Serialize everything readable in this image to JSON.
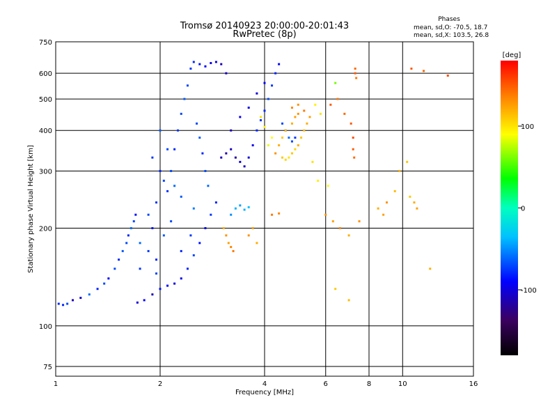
{
  "chart_data": {
    "type": "scatter",
    "title": "Tromsø 20140923 20:00:00-20:01:43",
    "subtitle": "RwPretec (8p)",
    "xlabel": "Frequency [MHz]",
    "ylabel": "Stationary phase Virtual Height [km]",
    "x_scale": "log",
    "y_scale": "log",
    "xlim": [
      1,
      16
    ],
    "ylim": [
      70,
      750
    ],
    "x_ticks": [
      1,
      2,
      4,
      6,
      8,
      10,
      16
    ],
    "y_ticks": [
      75,
      100,
      200,
      300,
      400,
      500,
      600,
      750
    ],
    "grid": true,
    "legend": {
      "title": "Phases",
      "lines": [
        "mean, sd,O: -70.5, 18.7",
        "mean, sd,X: 103.5, 26.8"
      ],
      "position": "top-right"
    },
    "colorbar": {
      "label": "[deg]",
      "range": [
        -180,
        180
      ],
      "ticks": [
        100,
        0,
        -100
      ],
      "colormap": "rainbow"
    },
    "series": [
      {
        "points": [
          [
            1.02,
            117,
            -80
          ],
          [
            1.05,
            116,
            -80
          ],
          [
            1.08,
            117,
            -70
          ],
          [
            1.12,
            120,
            -110
          ],
          [
            1.18,
            122,
            -100
          ],
          [
            1.25,
            125,
            -60
          ],
          [
            1.32,
            130,
            -80
          ],
          [
            1.38,
            135,
            -70
          ],
          [
            1.42,
            140,
            -90
          ],
          [
            1.48,
            150,
            -70
          ],
          [
            1.52,
            160,
            -80
          ],
          [
            1.56,
            170,
            -65
          ],
          [
            1.6,
            180,
            -70
          ],
          [
            1.62,
            190,
            -80
          ],
          [
            1.65,
            200,
            -60
          ],
          [
            1.68,
            210,
            -70
          ],
          [
            1.7,
            220,
            -85
          ],
          [
            1.72,
            118,
            -100
          ],
          [
            1.8,
            120,
            -90
          ],
          [
            1.9,
            125,
            -110
          ],
          [
            2.0,
            130,
            -85
          ],
          [
            2.1,
            133,
            -90
          ],
          [
            2.2,
            135,
            -100
          ],
          [
            2.3,
            140,
            -95
          ],
          [
            2.4,
            150,
            -80
          ],
          [
            2.5,
            165,
            -70
          ],
          [
            2.6,
            180,
            -85
          ],
          [
            2.7,
            200,
            -90
          ],
          [
            2.8,
            220,
            -75
          ],
          [
            2.9,
            240,
            -80
          ],
          [
            1.75,
            180,
            -60
          ],
          [
            1.85,
            170,
            -75
          ],
          [
            1.95,
            160,
            -80
          ],
          [
            2.05,
            190,
            -65
          ],
          [
            2.15,
            210,
            -70
          ],
          [
            2.1,
            260,
            -75
          ],
          [
            2.15,
            300,
            -70
          ],
          [
            2.2,
            350,
            -80
          ],
          [
            2.25,
            400,
            -75
          ],
          [
            2.3,
            450,
            -70
          ],
          [
            2.35,
            500,
            -65
          ],
          [
            2.4,
            550,
            -70
          ],
          [
            2.45,
            620,
            -75
          ],
          [
            2.5,
            650,
            -80
          ],
          [
            2.6,
            640,
            -85
          ],
          [
            2.7,
            630,
            -90
          ],
          [
            2.8,
            645,
            -100
          ],
          [
            2.9,
            650,
            -95
          ],
          [
            3.0,
            640,
            -110
          ],
          [
            3.1,
            600,
            -105
          ],
          [
            2.55,
            420,
            -70
          ],
          [
            2.6,
            380,
            -65
          ],
          [
            2.65,
            340,
            -80
          ],
          [
            2.7,
            300,
            -70
          ],
          [
            2.75,
            270,
            -60
          ],
          [
            2.5,
            230,
            -55
          ],
          [
            2.3,
            250,
            -65
          ],
          [
            2.2,
            270,
            -60
          ],
          [
            2.05,
            280,
            -70
          ],
          [
            1.95,
            240,
            -75
          ],
          [
            3.0,
            330,
            -110
          ],
          [
            3.1,
            340,
            -115
          ],
          [
            3.2,
            350,
            -110
          ],
          [
            3.3,
            330,
            -120
          ],
          [
            3.4,
            320,
            -105
          ],
          [
            3.5,
            310,
            -110
          ],
          [
            3.6,
            330,
            -100
          ],
          [
            3.7,
            360,
            -95
          ],
          [
            3.8,
            400,
            -80
          ],
          [
            3.9,
            430,
            -75
          ],
          [
            4.0,
            460,
            -80
          ],
          [
            4.1,
            500,
            -70
          ],
          [
            4.2,
            550,
            -75
          ],
          [
            4.3,
            600,
            -80
          ],
          [
            4.4,
            640,
            -90
          ],
          [
            3.2,
            400,
            -110
          ],
          [
            3.4,
            440,
            -100
          ],
          [
            3.6,
            470,
            -95
          ],
          [
            3.8,
            520,
            -100
          ],
          [
            4.0,
            560,
            -90
          ],
          [
            4.5,
            420,
            -70
          ],
          [
            4.6,
            400,
            -65
          ],
          [
            4.7,
            380,
            -60
          ],
          [
            4.8,
            370,
            -70
          ],
          [
            4.9,
            380,
            -75
          ],
          [
            3.3,
            230,
            -40
          ],
          [
            3.4,
            235,
            -45
          ],
          [
            3.5,
            228,
            -40
          ],
          [
            3.6,
            232,
            -35
          ],
          [
            3.2,
            220,
            -50
          ],
          [
            2.0,
            300,
            -80
          ],
          [
            1.9,
            330,
            -75
          ],
          [
            1.85,
            220,
            -70
          ],
          [
            1.9,
            200,
            -85
          ],
          [
            1.75,
            150,
            -75
          ],
          [
            2.0,
            400,
            -65
          ],
          [
            2.1,
            350,
            -70
          ],
          [
            1.95,
            145,
            -70
          ],
          [
            2.3,
            170,
            -80
          ],
          [
            2.45,
            190,
            -75
          ]
        ]
      },
      {
        "points": [
          [
            4.5,
            330,
            110
          ],
          [
            4.6,
            325,
            105
          ],
          [
            4.7,
            330,
            100
          ],
          [
            4.8,
            340,
            110
          ],
          [
            4.9,
            350,
            105
          ],
          [
            5.0,
            360,
            120
          ],
          [
            5.1,
            380,
            110
          ],
          [
            5.2,
            400,
            115
          ],
          [
            5.3,
            420,
            120
          ],
          [
            5.4,
            440,
            125
          ],
          [
            5.0,
            450,
            130
          ],
          [
            4.9,
            440,
            125
          ],
          [
            4.8,
            420,
            120
          ],
          [
            4.6,
            400,
            115
          ],
          [
            4.5,
            380,
            110
          ],
          [
            4.4,
            360,
            120
          ],
          [
            4.3,
            340,
            130
          ],
          [
            4.8,
            470,
            135
          ],
          [
            5.0,
            480,
            130
          ],
          [
            5.2,
            460,
            140
          ],
          [
            3.1,
            190,
            130
          ],
          [
            3.15,
            180,
            125
          ],
          [
            3.2,
            175,
            135
          ],
          [
            3.05,
            200,
            120
          ],
          [
            3.25,
            170,
            140
          ],
          [
            3.6,
            190,
            130
          ],
          [
            3.7,
            200,
            125
          ],
          [
            3.8,
            180,
            120
          ],
          [
            4.2,
            220,
            140
          ],
          [
            4.4,
            222,
            135
          ],
          [
            6.2,
            480,
            150
          ],
          [
            6.5,
            500,
            140
          ],
          [
            6.8,
            450,
            145
          ],
          [
            7.1,
            420,
            150
          ],
          [
            7.2,
            380,
            155
          ],
          [
            7.2,
            350,
            150
          ],
          [
            7.25,
            330,
            145
          ],
          [
            7.3,
            600,
            150
          ],
          [
            7.3,
            620,
            145
          ],
          [
            7.35,
            580,
            140
          ],
          [
            6.0,
            220,
            130
          ],
          [
            6.3,
            210,
            125
          ],
          [
            6.6,
            200,
            135
          ],
          [
            7.0,
            190,
            120
          ],
          [
            7.5,
            210,
            130
          ],
          [
            8.5,
            230,
            120
          ],
          [
            8.8,
            220,
            125
          ],
          [
            9.0,
            240,
            130
          ],
          [
            9.5,
            260,
            115
          ],
          [
            10.5,
            250,
            110
          ],
          [
            10.8,
            240,
            120
          ],
          [
            11.0,
            230,
            125
          ],
          [
            10.6,
            620,
            150
          ],
          [
            11.5,
            610,
            145
          ],
          [
            13.5,
            590,
            155
          ],
          [
            9.8,
            300,
            120
          ],
          [
            10.3,
            320,
            110
          ],
          [
            6.4,
            560,
            60
          ],
          [
            5.8,
            450,
            100
          ],
          [
            5.6,
            480,
            95
          ],
          [
            4.2,
            380,
            90
          ],
          [
            4.0,
            410,
            95
          ],
          [
            4.1,
            360,
            85
          ],
          [
            3.9,
            440,
            100
          ],
          [
            5.5,
            320,
            100
          ],
          [
            5.7,
            280,
            95
          ],
          [
            6.1,
            270,
            90
          ],
          [
            6.4,
            130,
            110
          ],
          [
            7.0,
            120,
            115
          ],
          [
            12.0,
            150,
            120
          ]
        ]
      }
    ]
  }
}
